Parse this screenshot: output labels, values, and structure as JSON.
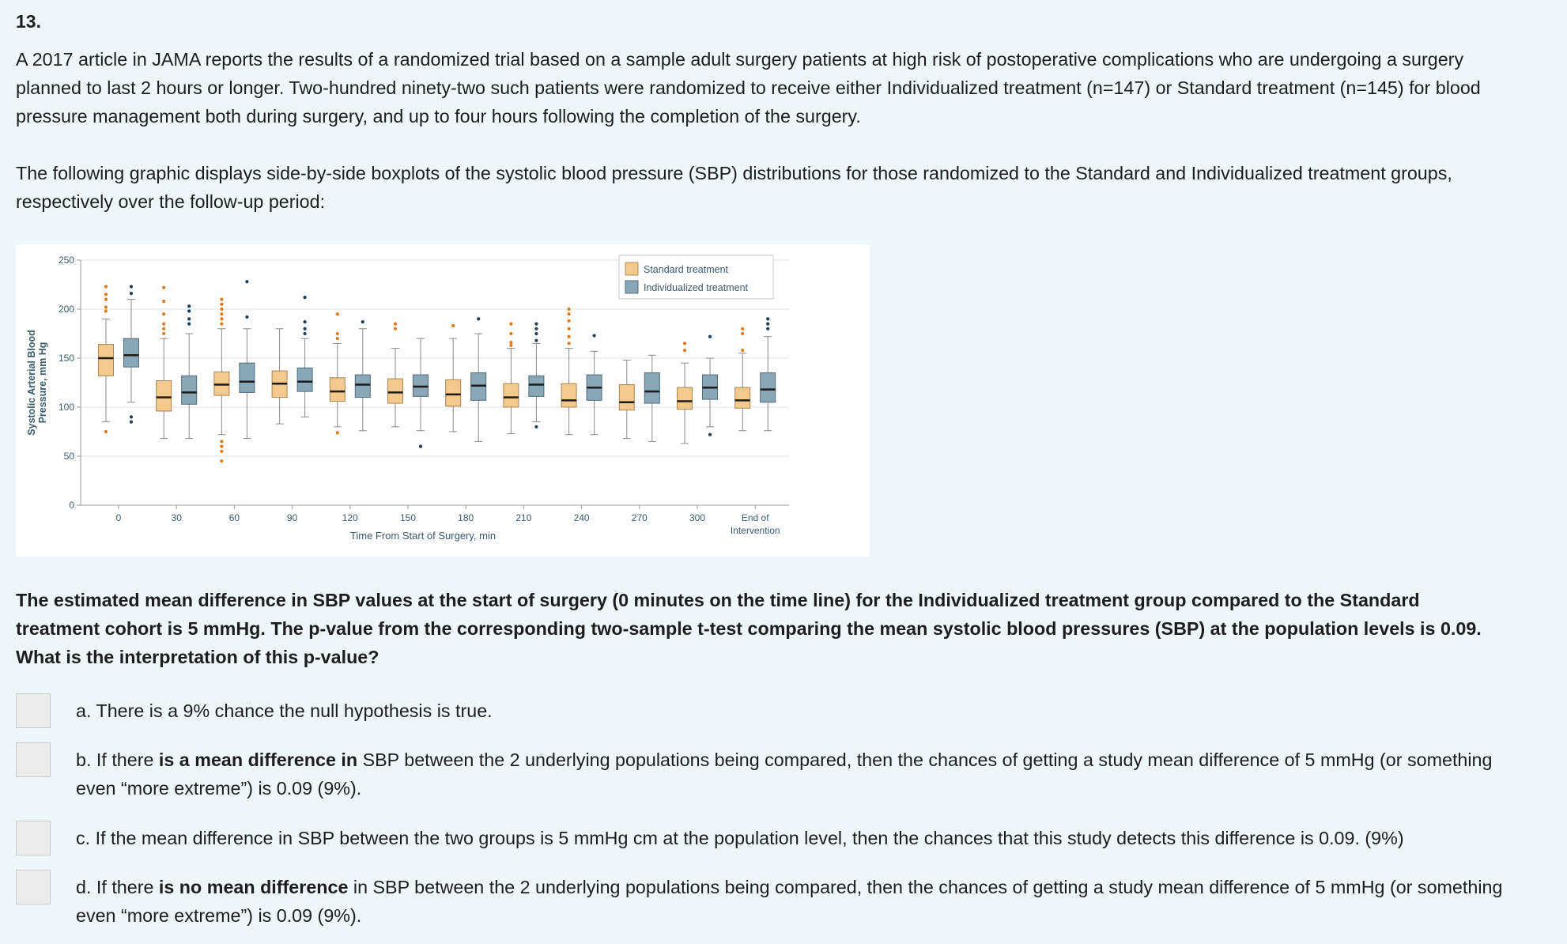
{
  "question": {
    "number": "13.",
    "intro": "A 2017 article in JAMA reports the results of a randomized trial based on a sample adult surgery patients at high risk of postoperative complications who are undergoing a surgery planned to last 2 hours or longer. Two-hundred ninety-two such patients were randomized to receive either Individualized treatment (n=147) or Standard treatment (n=145) for blood pressure management both during surgery, and up to four hours following the completion of the surgery.",
    "graphic_intro": "The following graphic displays side-by-side boxplots of the systolic blood pressure (SBP) distributions for those randomized to the Standard and Individualized treatment groups, respectively over the follow-up period:",
    "prompt": "The estimated mean difference in SBP values at the start of surgery (0 minutes on the time line) for the Individualized treatment group compared to the Standard treatment cohort is 5 mmHg. The p-value from the corresponding two-sample t-test comparing the mean systolic blood pressures (SBP) at the population levels is 0.09. What is the interpretation of this p-value?"
  },
  "options": [
    {
      "pre": "a. There is a 9% chance the null hypothesis is true.",
      "emph": "",
      "post": ""
    },
    {
      "pre": "b. If there ",
      "emph": "is a mean difference in",
      "post": " SBP between the 2 underlying populations being compared, then the chances of getting a study mean difference of 5 mmHg (or something even “more extreme”) is 0.09 (9%)."
    },
    {
      "pre": "c. If the mean difference in SBP between the two groups is 5 mmHg cm at the population level, then the chances that this study detects this difference is 0.09. (9%)",
      "emph": "",
      "post": ""
    },
    {
      "pre": "d. If there ",
      "emph": "is no mean difference",
      "post": " in SBP between the 2 underlying populations being compared, then the chances of getting a study mean difference of 5 mmHg (or something even “more extreme”) is 0.09 (9%)."
    }
  ],
  "chart_data": {
    "type": "boxplot",
    "title": "",
    "ylabel_line1": "Systolic Arterial Blood",
    "ylabel_line2": "Pressure, mm Hg",
    "xlabel": "Time From Start of Surgery, min",
    "ylim": [
      0,
      250
    ],
    "yticks": [
      "0",
      "50",
      "100",
      "150",
      "200",
      "250"
    ],
    "ytick_values": [
      0,
      50,
      100,
      150,
      200,
      250
    ],
    "categories": [
      "0",
      "30",
      "60",
      "90",
      "120",
      "150",
      "180",
      "210",
      "240",
      "270",
      "300",
      "End of Intervention"
    ],
    "colors": {
      "standard": "#f4c98d",
      "individualized": "#8aa7b7",
      "standard_outlier": "#e07b1a",
      "individualized_outlier": "#1f3f59"
    },
    "series": [
      {
        "name": "Standard treatment",
        "boxes": [
          {
            "whisker_low": 85,
            "q1": 132,
            "median": 150,
            "q3": 164,
            "whisker_high": 190,
            "outliers": [
              75,
              198,
              202,
              210,
              215,
              223
            ]
          },
          {
            "whisker_low": 68,
            "q1": 96,
            "median": 110,
            "q3": 127,
            "whisker_high": 170,
            "outliers": [
              175,
              180,
              185,
              195,
              208,
              222
            ]
          },
          {
            "whisker_low": 72,
            "q1": 112,
            "median": 123,
            "q3": 136,
            "whisker_high": 180,
            "outliers": [
              45,
              55,
              60,
              65,
              185,
              190,
              195,
              200,
              205,
              210
            ]
          },
          {
            "whisker_low": 83,
            "q1": 110,
            "median": 124,
            "q3": 137,
            "whisker_high": 180,
            "outliers": []
          },
          {
            "whisker_low": 80,
            "q1": 106,
            "median": 116,
            "q3": 130,
            "whisker_high": 165,
            "outliers": [
              74,
              170,
              175,
              195
            ]
          },
          {
            "whisker_low": 80,
            "q1": 104,
            "median": 115,
            "q3": 129,
            "whisker_high": 160,
            "outliers": [
              180,
              185
            ]
          },
          {
            "whisker_low": 75,
            "q1": 101,
            "median": 113,
            "q3": 128,
            "whisker_high": 170,
            "outliers": [
              183
            ]
          },
          {
            "whisker_low": 73,
            "q1": 100,
            "median": 110,
            "q3": 124,
            "whisker_high": 160,
            "outliers": [
              163,
              166,
              175,
              185
            ]
          },
          {
            "whisker_low": 72,
            "q1": 100,
            "median": 107,
            "q3": 124,
            "whisker_high": 160,
            "outliers": [
              165,
              172,
              180,
              188,
              195,
              200
            ]
          },
          {
            "whisker_low": 68,
            "q1": 97,
            "median": 105,
            "q3": 123,
            "whisker_high": 148,
            "outliers": []
          },
          {
            "whisker_low": 63,
            "q1": 98,
            "median": 106,
            "q3": 120,
            "whisker_high": 145,
            "outliers": [
              158,
              165
            ]
          },
          {
            "whisker_low": 76,
            "q1": 99,
            "median": 107,
            "q3": 120,
            "whisker_high": 155,
            "outliers": [
              158,
              175,
              180
            ]
          }
        ]
      },
      {
        "name": "Individualized treatment",
        "boxes": [
          {
            "whisker_low": 105,
            "q1": 141,
            "median": 153,
            "q3": 170,
            "whisker_high": 210,
            "outliers": [
              85,
              90,
              216,
              223
            ]
          },
          {
            "whisker_low": 68,
            "q1": 103,
            "median": 115,
            "q3": 132,
            "whisker_high": 175,
            "outliers": [
              185,
              190,
              198,
              203
            ]
          },
          {
            "whisker_low": 68,
            "q1": 115,
            "median": 126,
            "q3": 145,
            "whisker_high": 180,
            "outliers": [
              192,
              228
            ]
          },
          {
            "whisker_low": 90,
            "q1": 116,
            "median": 126,
            "q3": 140,
            "whisker_high": 170,
            "outliers": [
              175,
              180,
              187,
              212
            ]
          },
          {
            "whisker_low": 76,
            "q1": 110,
            "median": 123,
            "q3": 133,
            "whisker_high": 180,
            "outliers": [
              187
            ]
          },
          {
            "whisker_low": 76,
            "q1": 111,
            "median": 121,
            "q3": 133,
            "whisker_high": 170,
            "outliers": [
              60
            ]
          },
          {
            "whisker_low": 65,
            "q1": 107,
            "median": 122,
            "q3": 135,
            "whisker_high": 175,
            "outliers": [
              190
            ]
          },
          {
            "whisker_low": 85,
            "q1": 111,
            "median": 123,
            "q3": 132,
            "whisker_high": 165,
            "outliers": [
              80,
              168,
              175,
              180,
              185
            ]
          },
          {
            "whisker_low": 72,
            "q1": 107,
            "median": 120,
            "q3": 133,
            "whisker_high": 157,
            "outliers": [
              173
            ]
          },
          {
            "whisker_low": 65,
            "q1": 104,
            "median": 116,
            "q3": 135,
            "whisker_high": 153,
            "outliers": []
          },
          {
            "whisker_low": 80,
            "q1": 108,
            "median": 120,
            "q3": 133,
            "whisker_high": 150,
            "outliers": [
              72,
              172
            ]
          },
          {
            "whisker_low": 76,
            "q1": 105,
            "median": 118,
            "q3": 135,
            "whisker_high": 172,
            "outliers": [
              180,
              185,
              190
            ]
          }
        ]
      }
    ],
    "legend": {
      "placement": "top-right",
      "entries": [
        "Standard treatment",
        "Individualized treatment"
      ]
    }
  }
}
